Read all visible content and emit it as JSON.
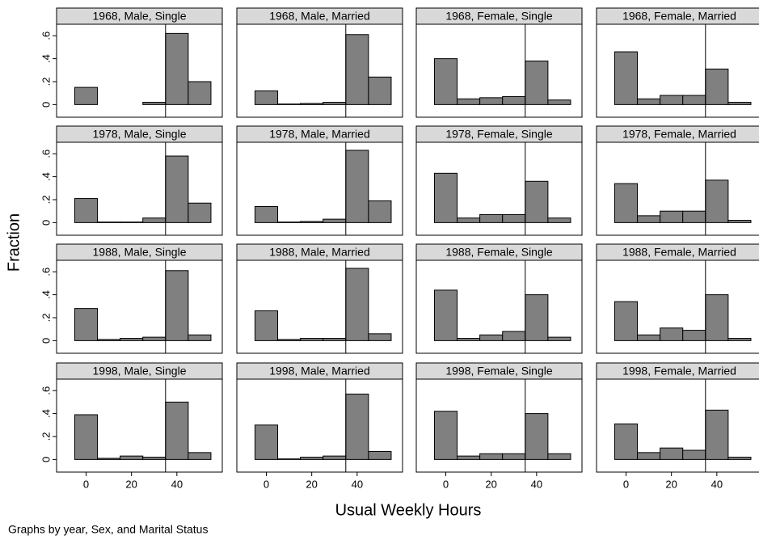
{
  "chart_data": {
    "type": "histogram",
    "y_label": "Fraction",
    "x_label": "Usual Weekly Hours",
    "note": "Graphs by year, Sex, and Marital Status",
    "color": "#808080",
    "bins": [
      -5,
      5,
      15,
      25,
      35,
      45,
      55
    ],
    "reference_line": 35,
    "xlim": [
      -13,
      60
    ],
    "ylim": [
      -0.11,
      0.7
    ],
    "xticks": [
      0,
      20,
      40
    ],
    "yticks": [
      0,
      {
        "value": 0.2,
        "label": ".2"
      },
      {
        "value": 0.4,
        "label": ".4"
      },
      {
        "value": 0.6,
        "label": ".6"
      }
    ],
    "panels": [
      {
        "title": "1968, Male, Single",
        "values": [
          0.15,
          0,
          0,
          0.02,
          0.62,
          0.2
        ]
      },
      {
        "title": "1968, Male, Married",
        "values": [
          0.12,
          0.005,
          0.01,
          0.02,
          0.61,
          0.24
        ]
      },
      {
        "title": "1968, Female, Single",
        "values": [
          0.4,
          0.05,
          0.06,
          0.07,
          0.38,
          0.04
        ]
      },
      {
        "title": "1968, Female, Married",
        "values": [
          0.46,
          0.05,
          0.08,
          0.08,
          0.31,
          0.02
        ]
      },
      {
        "title": "1978, Male, Single",
        "values": [
          0.21,
          0.005,
          0.005,
          0.04,
          0.58,
          0.17
        ]
      },
      {
        "title": "1978, Male, Married",
        "values": [
          0.14,
          0.005,
          0.01,
          0.03,
          0.63,
          0.19
        ]
      },
      {
        "title": "1978, Female, Single",
        "values": [
          0.43,
          0.04,
          0.07,
          0.07,
          0.36,
          0.04
        ]
      },
      {
        "title": "1978, Female, Married",
        "values": [
          0.34,
          0.06,
          0.1,
          0.1,
          0.37,
          0.02
        ]
      },
      {
        "title": "1988, Male, Single",
        "values": [
          0.28,
          0.01,
          0.02,
          0.03,
          0.61,
          0.05
        ]
      },
      {
        "title": "1988, Male, Married",
        "values": [
          0.26,
          0.01,
          0.02,
          0.02,
          0.63,
          0.06
        ]
      },
      {
        "title": "1988, Female, Single",
        "values": [
          0.44,
          0.02,
          0.05,
          0.08,
          0.4,
          0.03
        ]
      },
      {
        "title": "1988, Female, Married",
        "values": [
          0.34,
          0.05,
          0.11,
          0.09,
          0.4,
          0.02
        ]
      },
      {
        "title": "1998, Male, Single",
        "values": [
          0.39,
          0.01,
          0.03,
          0.02,
          0.5,
          0.06
        ]
      },
      {
        "title": "1998, Male, Married",
        "values": [
          0.3,
          0.005,
          0.02,
          0.03,
          0.57,
          0.07
        ]
      },
      {
        "title": "1998, Female, Single",
        "values": [
          0.42,
          0.03,
          0.05,
          0.05,
          0.4,
          0.05
        ]
      },
      {
        "title": "1998, Female, Married",
        "values": [
          0.31,
          0.06,
          0.1,
          0.08,
          0.43,
          0.02
        ]
      }
    ]
  }
}
